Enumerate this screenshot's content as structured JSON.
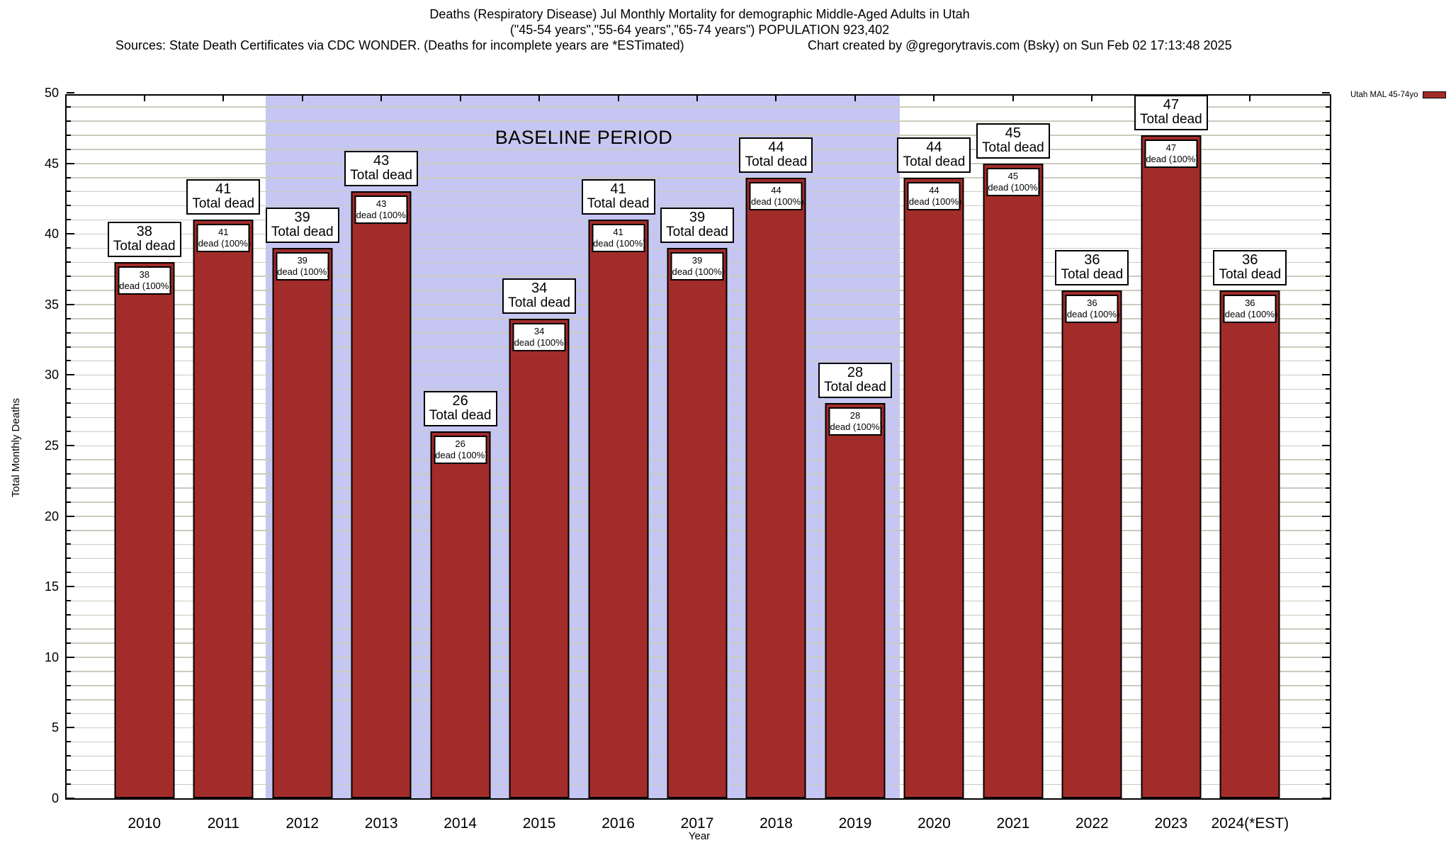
{
  "title": {
    "line1": "Deaths (Respiratory Disease) Jul Monthly Mortality for demographic Middle-Aged Adults in Utah",
    "line2": "(\"45-54 years\",\"55-64 years\",\"65-74 years\") POPULATION 923,402",
    "line3_left": "Sources: State Death Certificates via CDC WONDER. (Deaths for incomplete years are *ESTimated)",
    "line3_right": "Chart created by @gregorytravis.com (Bsky) on Sun Feb 02 17:13:48 2025"
  },
  "legend": {
    "label": "Utah MAL 45-74yo"
  },
  "axes": {
    "ylabel": "Total Monthly Deaths",
    "xlabel": "Year",
    "y_ticks": [
      0,
      5,
      10,
      15,
      20,
      25,
      30,
      35,
      40,
      45,
      50
    ]
  },
  "baseline": {
    "label": "BASELINE PERIOD"
  },
  "chart_data": {
    "type": "bar",
    "title": "Deaths (Respiratory Disease) Jul Monthly Mortality for demographic Middle-Aged Adults in Utah",
    "categories": [
      "2010",
      "2011",
      "2012",
      "2013",
      "2014",
      "2015",
      "2016",
      "2017",
      "2018",
      "2019",
      "2020",
      "2021",
      "2022",
      "2023",
      "2024(*EST)"
    ],
    "series": [
      {
        "name": "Utah MAL 45-74yo",
        "values": [
          38,
          41,
          39,
          43,
          26,
          34,
          41,
          39,
          44,
          28,
          44,
          45,
          36,
          47,
          36
        ]
      }
    ],
    "bar_top_label_suffix": "Total dead",
    "bar_inner_label_suffix": "dead (100%)",
    "baseline_period": {
      "from_category": "2012",
      "to_category": "2019",
      "label": "BASELINE PERIOD"
    },
    "xlabel": "Year",
    "ylabel": "Total Monthly Deaths",
    "ylim": [
      0,
      50
    ],
    "grid": "horizontal, every 1 unit",
    "legend_position": "top-right",
    "colors": {
      "bar": "#A22C2A",
      "baseline_band": "#C6C6F2",
      "grid_line": "#CBCBBE",
      "background": "#FFFFFF",
      "text": "#000000"
    }
  }
}
